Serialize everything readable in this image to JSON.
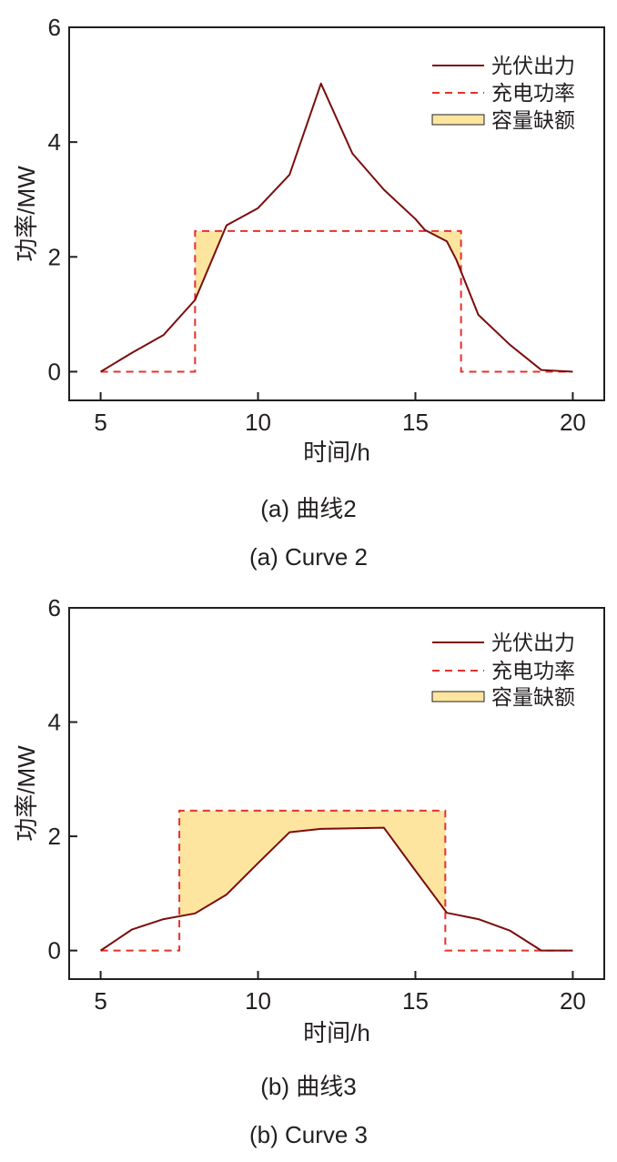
{
  "colors": {
    "pv_line": "#7b0d0d",
    "charge_line": "#e8302a",
    "gap_fill": "#fde5a0",
    "axis": "#231f20"
  },
  "chart_data": [
    {
      "type": "line",
      "xlabel": "时间/h",
      "ylabel": "功率/MW",
      "xlim": [
        4,
        21
      ],
      "ylim": [
        -0.5,
        6
      ],
      "xticks": [
        5,
        10,
        15,
        20
      ],
      "yticks": [
        0,
        2,
        4,
        6
      ],
      "legend_position": "top-right",
      "caption_cn": "(a) 曲线2",
      "caption_en": "(a) Curve 2",
      "series": [
        {
          "name": "光伏出力",
          "style": "solid",
          "x": [
            5,
            6,
            7,
            8,
            9,
            10,
            11,
            12,
            13,
            14,
            15,
            15.3,
            16,
            16.3,
            17,
            18,
            19,
            20
          ],
          "y": [
            0,
            0.33,
            0.64,
            1.25,
            2.55,
            2.85,
            3.43,
            5.02,
            3.8,
            3.17,
            2.66,
            2.47,
            2.27,
            1.95,
            0.99,
            0.47,
            0.03,
            0.0
          ]
        },
        {
          "name": "充电功率",
          "style": "dashed",
          "x": [
            5,
            8,
            8,
            16.45,
            16.45,
            20
          ],
          "y": [
            0,
            0,
            2.45,
            2.45,
            0,
            0
          ]
        },
        {
          "name": "容量缺额",
          "style": "fill",
          "upper_y": 2.45,
          "regions": [
            {
              "x": [
                8,
                8.9
              ],
              "pv_y": [
                1.25,
                2.45
              ]
            },
            {
              "x": [
                15.3,
                16,
                16.3,
                16.45
              ],
              "pv_y": [
                2.47,
                2.27,
                1.95,
                1.7
              ]
            }
          ]
        }
      ]
    },
    {
      "type": "line",
      "xlabel": "时间/h",
      "ylabel": "功率/MW",
      "xlim": [
        4,
        21
      ],
      "ylim": [
        -0.5,
        6
      ],
      "xticks": [
        5,
        10,
        15,
        20
      ],
      "yticks": [
        0,
        2,
        4,
        6
      ],
      "legend_position": "top-right",
      "caption_cn": "(b) 曲线3",
      "caption_en": "(b) Curve 3",
      "series": [
        {
          "name": "光伏出力",
          "style": "solid",
          "x": [
            5,
            6,
            7,
            8,
            9,
            10,
            11,
            12,
            13,
            14,
            15,
            16,
            17,
            18,
            19,
            20
          ],
          "y": [
            0,
            0.37,
            0.55,
            0.65,
            0.98,
            1.53,
            2.07,
            2.13,
            2.14,
            2.15,
            1.4,
            0.66,
            0.55,
            0.35,
            0.0,
            0.0
          ]
        },
        {
          "name": "充电功率",
          "style": "dashed",
          "x": [
            5,
            7.5,
            7.5,
            15.95,
            15.95,
            20
          ],
          "y": [
            0,
            0,
            2.45,
            2.45,
            0,
            0
          ]
        },
        {
          "name": "容量缺额",
          "style": "fill",
          "upper_y": 2.45,
          "regions": [
            {
              "x": [
                7.5,
                8,
                9,
                10,
                11,
                12,
                13,
                14,
                15,
                15.95
              ],
              "pv_y": [
                0.6,
                0.65,
                0.98,
                1.53,
                2.07,
                2.13,
                2.14,
                2.15,
                1.4,
                0.66
              ]
            }
          ]
        }
      ]
    }
  ]
}
